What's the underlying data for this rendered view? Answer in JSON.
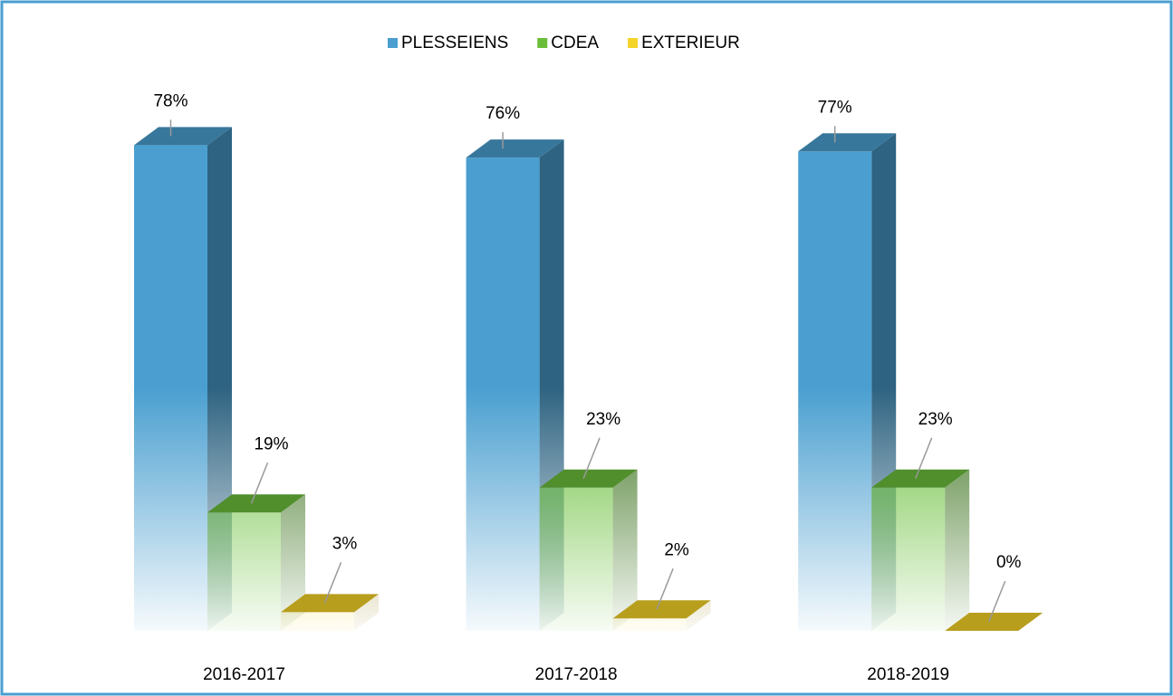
{
  "chart_data": {
    "type": "bar3d",
    "categories": [
      "2016-2017",
      "2017-2018",
      "2018-2019"
    ],
    "series": [
      {
        "name": "PLESSEIENS",
        "color": "#4a9fd0",
        "values": [
          78,
          76,
          77
        ],
        "value_labels": [
          "78%",
          "76%",
          "77%"
        ]
      },
      {
        "name": "CDEA",
        "color": "#6abf3a",
        "values": [
          19,
          23,
          23
        ],
        "value_labels": [
          "19%",
          "23%",
          "23%"
        ]
      },
      {
        "name": "EXTERIEUR",
        "color": "#f5d327",
        "values": [
          3,
          2,
          0
        ],
        "value_labels": [
          "3%",
          "2%",
          "0%"
        ]
      }
    ],
    "legend": "top"
  }
}
